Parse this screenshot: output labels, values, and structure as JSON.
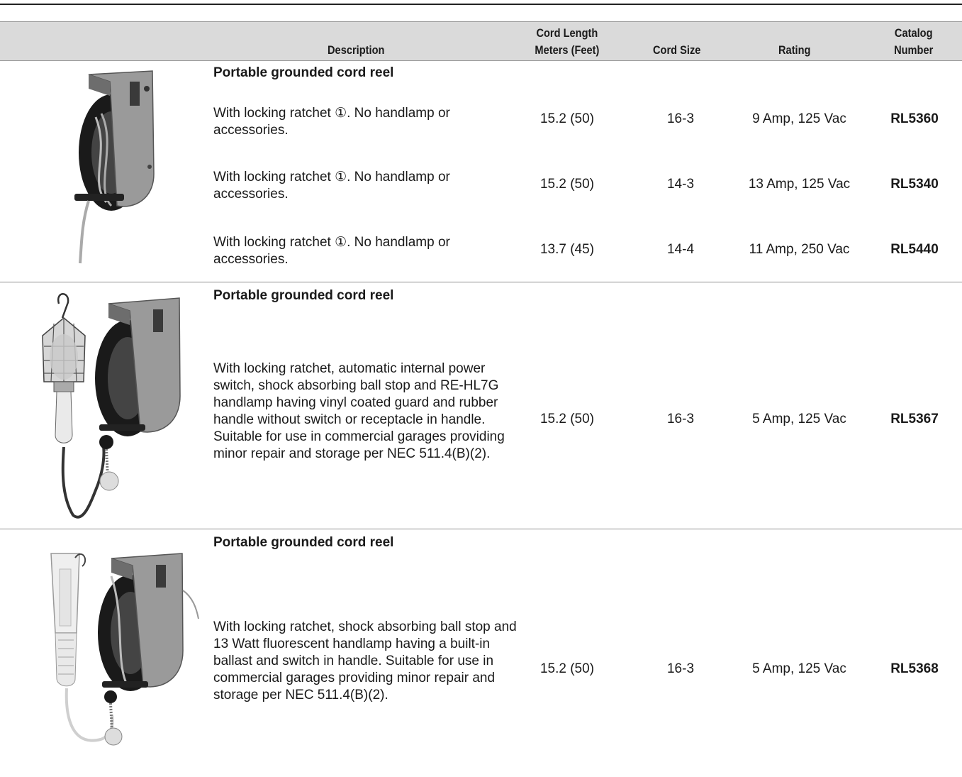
{
  "header": {
    "description": "Description",
    "cord_length_line1": "Cord Length",
    "cord_length_line2": "Meters (Feet)",
    "cord_size": "Cord Size",
    "rating": "Rating",
    "catalog_line1": "Catalog",
    "catalog_line2": "Number"
  },
  "groups": [
    {
      "title": "Portable grounded cord reel",
      "image": "cord-reel-icon",
      "rows": [
        {
          "description": "With locking ratchet ①. No handlamp or accessories.",
          "length": "15.2 (50)",
          "size": "16-3",
          "rating": "9 Amp, 125 Vac",
          "catalog": "RL5360"
        },
        {
          "description": "With locking ratchet ①. No handlamp or accessories.",
          "length": "15.2 (50)",
          "size": "14-3",
          "rating": "13 Amp, 125 Vac",
          "catalog": "RL5340"
        },
        {
          "description": "With locking ratchet ①. No handlamp or accessories.",
          "length": "13.7 (45)",
          "size": "14-4",
          "rating": "11 Amp, 250 Vac",
          "catalog": "RL5440"
        }
      ]
    },
    {
      "title": "Portable grounded cord reel",
      "image": "cord-reel-with-guarded-handlamp-icon",
      "rows": [
        {
          "description": "With locking ratchet, automatic internal power switch, shock absorbing ball stop and RE-HL7G handlamp having vinyl coated guard and rubber handle without switch or receptacle in handle. Suitable for use in commercial garages providing minor repair and storage per NEC 511.4(B)(2).",
          "length": "15.2 (50)",
          "size": "16-3",
          "rating": "5 Amp, 125 Vac",
          "catalog": "RL5367"
        }
      ]
    },
    {
      "title": "Portable grounded cord reel",
      "image": "cord-reel-with-fluorescent-handlamp-icon",
      "rows": [
        {
          "description": "With locking ratchet, shock absorbing ball stop and 13 Watt fluorescent handlamp having a built-in ballast and switch in handle. Suitable for use in commercial garages providing minor repair and storage per NEC 511.4(B)(2).",
          "length": "15.2 (50)",
          "size": "16-3",
          "rating": "5 Amp, 125 Vac",
          "catalog": "RL5368"
        }
      ]
    }
  ]
}
